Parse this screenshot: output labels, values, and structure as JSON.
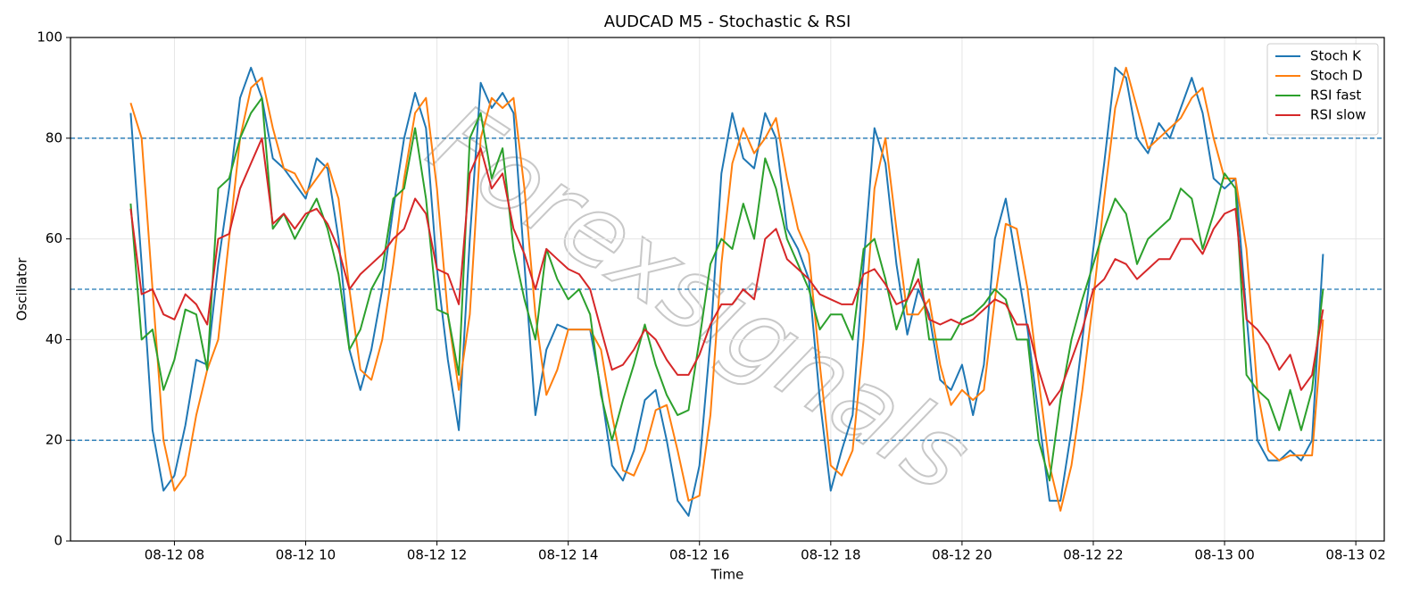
{
  "chart_data": {
    "type": "line",
    "title": "AUDCAD M5 - Stochastic & RSI",
    "x_label": "Time",
    "y_label": "Oscillator",
    "watermark": "Forexsignals",
    "x": [
      440,
      450,
      460,
      470,
      480,
      490,
      500,
      510,
      520,
      530,
      540,
      550,
      560,
      570,
      580,
      590,
      600,
      610,
      620,
      630,
      640,
      650,
      660,
      670,
      680,
      690,
      700,
      710,
      720,
      730,
      740,
      750,
      760,
      770,
      780,
      790,
      800,
      810,
      820,
      830,
      840,
      850,
      860,
      870,
      880,
      890,
      900,
      910,
      920,
      930,
      940,
      950,
      960,
      970,
      980,
      990,
      1000,
      1010,
      1020,
      1030,
      1040,
      1050,
      1060,
      1070,
      1080,
      1090,
      1100,
      1110,
      1120,
      1130,
      1140,
      1150,
      1160,
      1170,
      1180,
      1190,
      1200,
      1210,
      1220,
      1230,
      1240,
      1250,
      1260,
      1270,
      1280,
      1290,
      1300,
      1310,
      1320,
      1330,
      1340,
      1350,
      1360,
      1370,
      1380,
      1390,
      1400,
      1410,
      1420,
      1430,
      1440,
      1450,
      1460,
      1470,
      1480,
      1490,
      1500,
      1510,
      1520,
      1530
    ],
    "xlim": [
      385,
      1586
    ],
    "xticks": [
      {
        "value": 480,
        "label": "08-12 08"
      },
      {
        "value": 600,
        "label": "08-12 10"
      },
      {
        "value": 720,
        "label": "08-12 12"
      },
      {
        "value": 840,
        "label": "08-12 14"
      },
      {
        "value": 960,
        "label": "08-12 16"
      },
      {
        "value": 1080,
        "label": "08-12 18"
      },
      {
        "value": 1200,
        "label": "08-12 20"
      },
      {
        "value": 1320,
        "label": "08-12 22"
      },
      {
        "value": 1440,
        "label": "08-13 00"
      },
      {
        "value": 1560,
        "label": "08-13 02"
      }
    ],
    "ylim": [
      0,
      100
    ],
    "yticks": [
      0,
      20,
      40,
      60,
      80,
      100
    ],
    "grid": true,
    "levels": [
      20,
      50,
      80
    ],
    "level_color": "#1f77b4",
    "legend": "upper right",
    "series": [
      {
        "name": "Stoch K",
        "color": "#1f77b4",
        "values": [
          85,
          55,
          22,
          10,
          13,
          23,
          36,
          35,
          55,
          70,
          88,
          94,
          88,
          76,
          74,
          71,
          68,
          76,
          74,
          60,
          38,
          30,
          38,
          50,
          66,
          80,
          89,
          82,
          54,
          36,
          22,
          60,
          91,
          86,
          89,
          85,
          55,
          25,
          38,
          43,
          42,
          42,
          42,
          30,
          15,
          12,
          18,
          28,
          30,
          20,
          8,
          5,
          15,
          40,
          73,
          85,
          76,
          74,
          85,
          80,
          62,
          58,
          52,
          28,
          10,
          18,
          25,
          55,
          82,
          75,
          55,
          41,
          50,
          45,
          32,
          30,
          35,
          25,
          35,
          60,
          68,
          55,
          42,
          25,
          8,
          8,
          22,
          40,
          58,
          75,
          94,
          92,
          80,
          77,
          83,
          80,
          86,
          92,
          85,
          72,
          70,
          72,
          45,
          20,
          16,
          16,
          18,
          16,
          20,
          57
        ]
      },
      {
        "name": "Stoch D",
        "color": "#ff7f0e",
        "values": [
          87,
          80,
          50,
          20,
          10,
          13,
          25,
          34,
          40,
          60,
          80,
          90,
          92,
          82,
          74,
          73,
          69,
          72,
          75,
          68,
          50,
          34,
          32,
          40,
          55,
          72,
          85,
          88,
          70,
          45,
          30,
          45,
          80,
          88,
          86,
          88,
          70,
          45,
          29,
          34,
          42,
          42,
          42,
          38,
          25,
          14,
          13,
          18,
          26,
          27,
          18,
          8,
          9,
          25,
          55,
          75,
          82,
          77,
          80,
          84,
          72,
          62,
          57,
          35,
          15,
          13,
          18,
          40,
          70,
          80,
          62,
          45,
          45,
          48,
          35,
          27,
          30,
          28,
          30,
          48,
          63,
          62,
          50,
          32,
          15,
          6,
          15,
          30,
          48,
          68,
          86,
          94,
          86,
          78,
          80,
          82,
          84,
          88,
          90,
          80,
          72,
          72,
          58,
          30,
          18,
          16,
          17,
          17,
          17,
          44
        ]
      },
      {
        "name": "RSI fast",
        "color": "#2ca02c",
        "values": [
          67,
          40,
          42,
          30,
          36,
          46,
          45,
          34,
          70,
          72,
          80,
          85,
          88,
          62,
          65,
          60,
          64,
          68,
          62,
          53,
          38,
          42,
          50,
          54,
          68,
          70,
          82,
          68,
          46,
          45,
          33,
          80,
          85,
          72,
          78,
          58,
          48,
          40,
          58,
          52,
          48,
          50,
          45,
          29,
          20,
          28,
          35,
          43,
          35,
          29,
          25,
          26,
          40,
          55,
          60,
          58,
          67,
          60,
          76,
          70,
          60,
          55,
          50,
          42,
          45,
          45,
          40,
          58,
          60,
          52,
          42,
          48,
          56,
          40,
          40,
          40,
          44,
          45,
          47,
          50,
          48,
          40,
          40,
          20,
          12,
          28,
          40,
          48,
          55,
          62,
          68,
          65,
          55,
          60,
          62,
          64,
          70,
          68,
          58,
          65,
          73,
          70,
          33,
          30,
          28,
          22,
          30,
          22,
          30,
          50
        ]
      },
      {
        "name": "RSI slow",
        "color": "#d62728",
        "values": [
          66,
          49,
          50,
          45,
          44,
          49,
          47,
          43,
          60,
          61,
          70,
          75,
          80,
          63,
          65,
          62,
          65,
          66,
          63,
          58,
          50,
          53,
          55,
          57,
          60,
          62,
          68,
          65,
          54,
          53,
          47,
          73,
          78,
          70,
          73,
          62,
          57,
          50,
          58,
          56,
          54,
          53,
          50,
          42,
          34,
          35,
          38,
          42,
          40,
          36,
          33,
          33,
          37,
          43,
          47,
          47,
          50,
          48,
          60,
          62,
          56,
          54,
          52,
          49,
          48,
          47,
          47,
          53,
          54,
          51,
          47,
          48,
          52,
          44,
          43,
          44,
          43,
          44,
          46,
          48,
          47,
          43,
          43,
          34,
          27,
          30,
          36,
          42,
          50,
          52,
          56,
          55,
          52,
          54,
          56,
          56,
          60,
          60,
          57,
          62,
          65,
          66,
          44,
          42,
          39,
          34,
          37,
          30,
          33,
          46
        ]
      }
    ]
  }
}
